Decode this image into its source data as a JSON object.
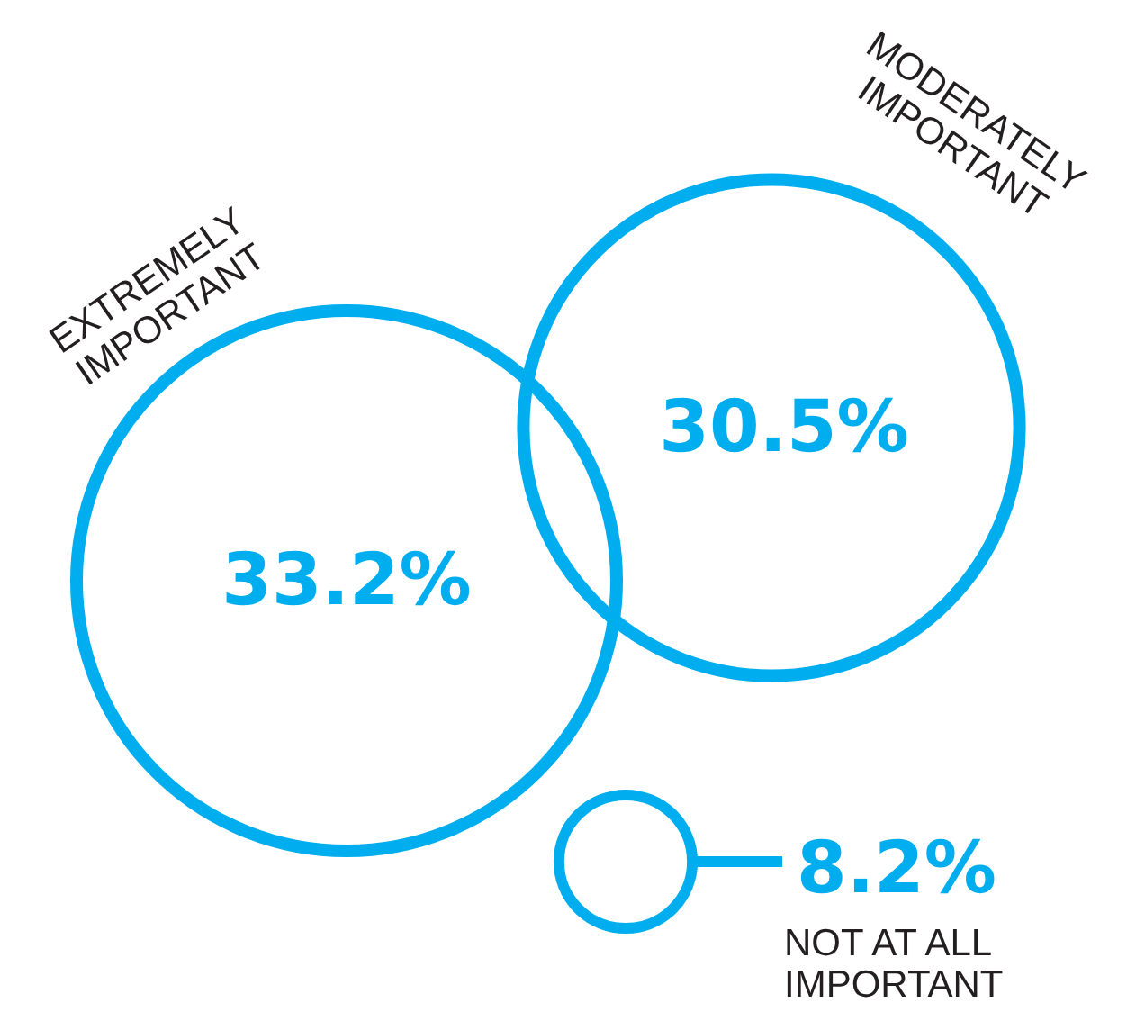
{
  "chart_data": {
    "type": "other",
    "categories": [
      "EXTREMELY IMPORTANT",
      "MODERATELY IMPORTANT",
      "NOT AT ALL IMPORTANT"
    ],
    "values": [
      33.2,
      30.5,
      8.2
    ],
    "value_labels": [
      "33.2%",
      "30.5%",
      "8.2%"
    ],
    "color": "#00aeef"
  }
}
